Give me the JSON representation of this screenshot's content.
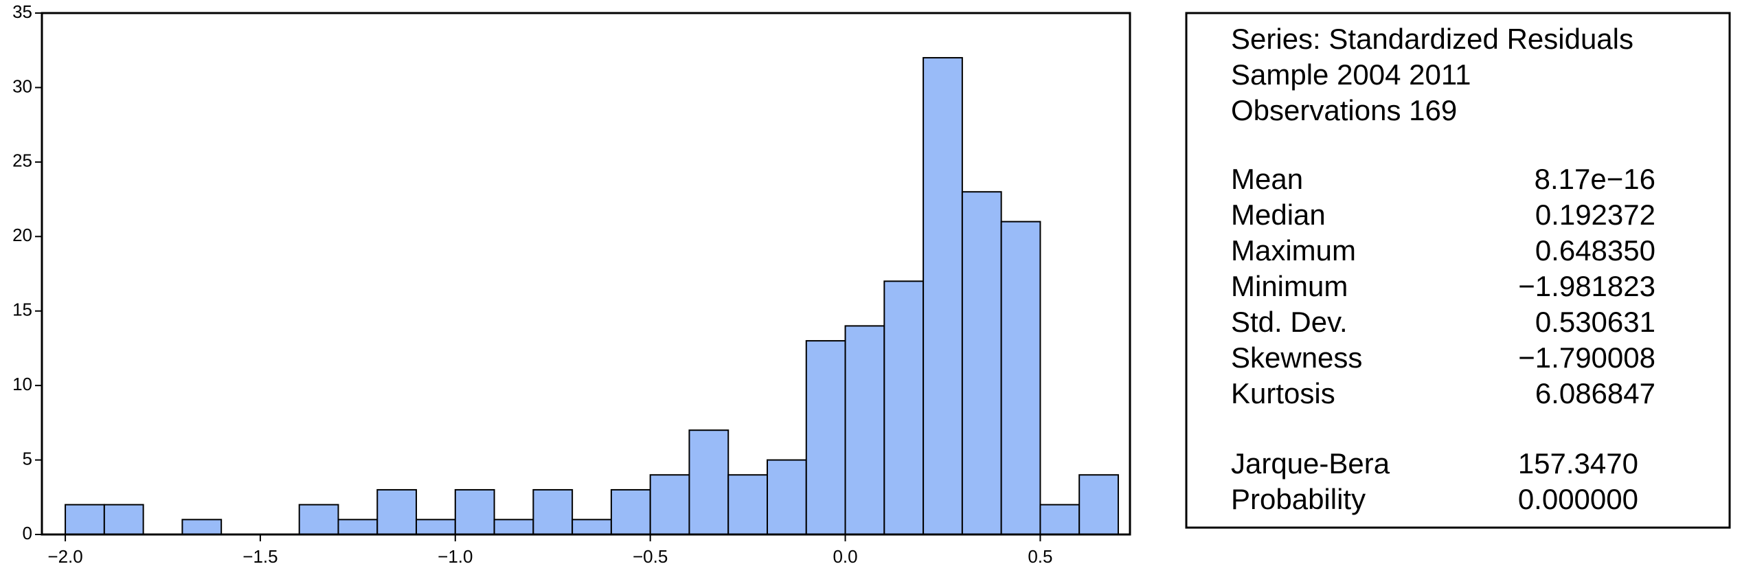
{
  "chart_data": {
    "type": "histogram",
    "bins": [
      -2.0,
      -1.9,
      -1.8,
      -1.7,
      -1.6,
      -1.5,
      -1.4,
      -1.3,
      -1.2,
      -1.1,
      -1.0,
      -0.9,
      -0.8,
      -0.7,
      -0.6,
      -0.5,
      -0.4,
      -0.3,
      -0.2,
      -0.1,
      0.0,
      0.1,
      0.2,
      0.3,
      0.4,
      0.5,
      0.6,
      0.7
    ],
    "values": [
      2,
      2,
      0,
      1,
      0,
      0,
      2,
      1,
      3,
      1,
      3,
      1,
      3,
      1,
      3,
      4,
      7,
      4,
      5,
      13,
      14,
      17,
      32,
      23,
      21,
      2,
      4
    ],
    "color": "#99bbf8",
    "xlim": [
      -2.06,
      0.73
    ],
    "ylim": [
      0,
      35
    ],
    "xticks": [
      {
        "value": -2.0,
        "label": "−2.0"
      },
      {
        "value": -1.5,
        "label": "−1.5"
      },
      {
        "value": -1.0,
        "label": "−1.0"
      },
      {
        "value": -0.5,
        "label": "−0.5"
      },
      {
        "value": 0.0,
        "label": "0.0"
      },
      0.5
    ],
    "yticks": [
      0,
      5,
      10,
      15,
      20,
      25,
      30,
      35
    ],
    "stats": {
      "header": [
        "Series: Standardized Residuals",
        "Sample 2004 2011",
        "Observations 169"
      ],
      "moments": [
        {
          "label": "Mean",
          "value": "8.17e−16"
        },
        {
          "label": "Median",
          "value": "0.192372"
        },
        {
          "label": "Maximum",
          "value": "0.648350"
        },
        {
          "label": "Minimum",
          "value": "−1.981823"
        },
        {
          "label": "Std. Dev.",
          "value": "0.530631"
        },
        {
          "label": "Skewness",
          "value": "−1.790008"
        },
        {
          "label": "Kurtosis",
          "value": "6.086847"
        }
      ],
      "tests": [
        {
          "label": "Jarque-Bera",
          "value": "157.3470"
        },
        {
          "label": "Probability",
          "value": "0.000000"
        }
      ]
    }
  }
}
